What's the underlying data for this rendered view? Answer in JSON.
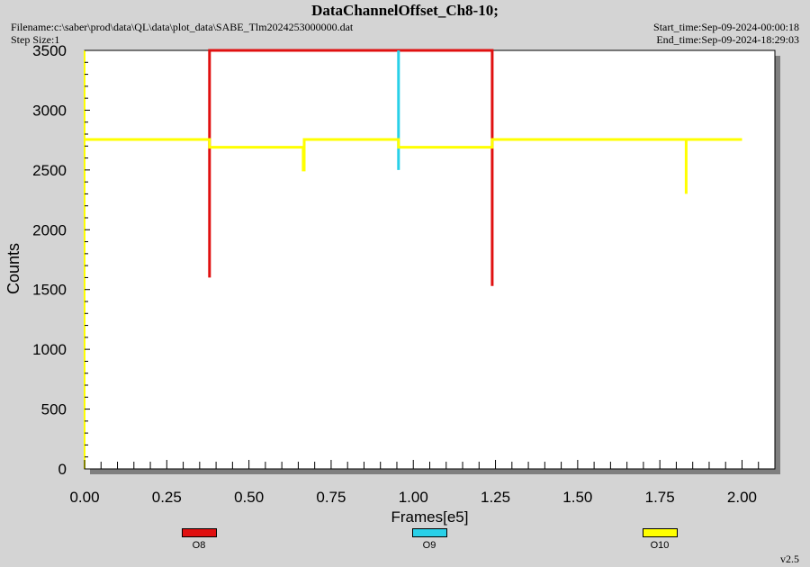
{
  "header": {
    "title": "DataChannelOffset_Ch8-10;",
    "filename": "Filename:c:\\saber\\prod\\data\\QL\\data\\plot_data\\SABE_Tlm2024253000000.dat",
    "step_size": "Step Size:1",
    "start_time": "Start_time:Sep-09-2024-00:00:18",
    "end_time": "End_time:Sep-09-2024-18:29:03"
  },
  "version": "v2.5",
  "colors": {
    "O8": "#e01010",
    "O9": "#29d0e8",
    "O10": "#ffff00",
    "plot_bg": "#ffffff",
    "page_bg": "#d4d4d4"
  },
  "chart_data": {
    "type": "line",
    "xlabel": "Frames[e5]",
    "ylabel": "Counts",
    "xlim": [
      0,
      2.1
    ],
    "ylim": [
      0,
      3500
    ],
    "x_ticks": [
      "0.00",
      "0.25",
      "0.50",
      "0.75",
      "1.00",
      "1.25",
      "1.50",
      "1.75",
      "2.00"
    ],
    "y_ticks": [
      "0",
      "500",
      "1000",
      "1500",
      "2000",
      "2500",
      "3000",
      "3500"
    ],
    "legend_position": "bottom",
    "series": [
      {
        "name": "O8",
        "color": "#e01010",
        "points": [
          [
            0.38,
            3500
          ],
          [
            0.38,
            1600
          ],
          [
            0.38,
            3500
          ],
          [
            1.24,
            3500
          ],
          [
            1.24,
            1530
          ],
          [
            1.24,
            3500
          ]
        ]
      },
      {
        "name": "O9",
        "color": "#29d0e8",
        "points": [
          [
            0.955,
            3500
          ],
          [
            0.955,
            2500
          ],
          [
            0.955,
            3500
          ]
        ]
      },
      {
        "name": "O10",
        "color": "#ffff00",
        "points": [
          [
            0.0,
            2755
          ],
          [
            0.38,
            2755
          ],
          [
            0.38,
            2690
          ],
          [
            0.665,
            2690
          ],
          [
            0.665,
            2500
          ],
          [
            0.668,
            2500
          ],
          [
            0.668,
            2755
          ],
          [
            0.955,
            2755
          ],
          [
            0.955,
            2690
          ],
          [
            1.24,
            2690
          ],
          [
            1.24,
            2755
          ],
          [
            1.83,
            2755
          ],
          [
            1.83,
            2300
          ],
          [
            1.83,
            2755
          ],
          [
            2.0,
            2755
          ]
        ]
      }
    ]
  }
}
